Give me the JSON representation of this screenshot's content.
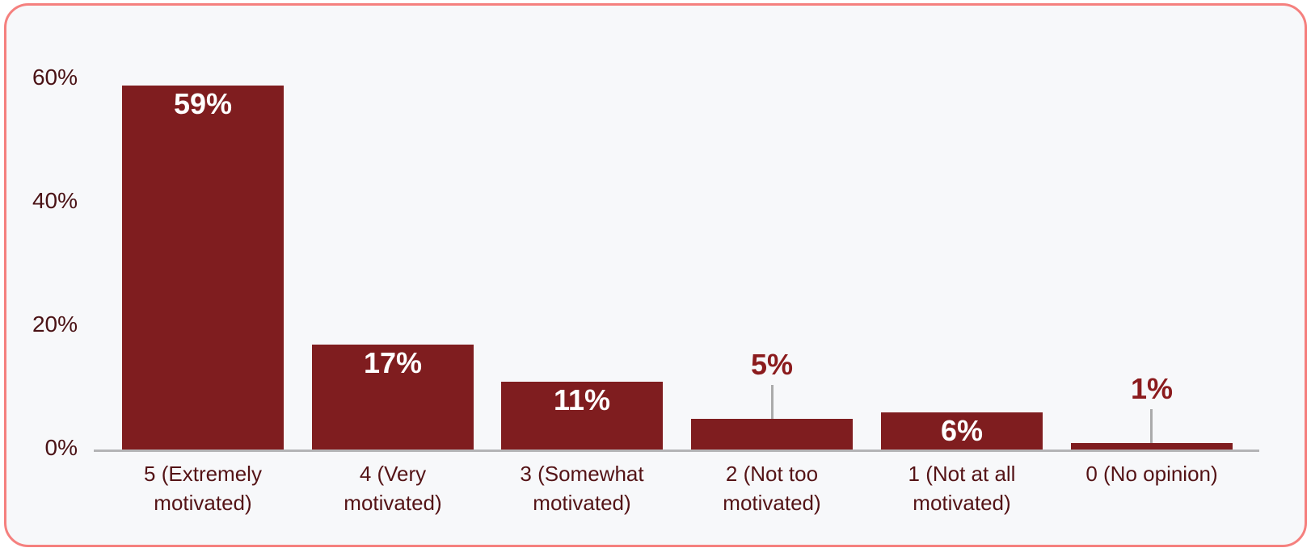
{
  "frame": {
    "border_color": "#f5807e",
    "background_color": "#f7f8fa"
  },
  "chart_data": {
    "type": "bar",
    "categories": [
      "5 (Extremely\nmotivated)",
      "4 (Very\nmotivated)",
      "3 (Somewhat\nmotivated)",
      "2 (Not too\nmotivated)",
      "1 (Not at all\nmotivated)",
      "0 (No opinion)"
    ],
    "values": [
      59,
      17,
      11,
      5,
      6,
      1
    ],
    "value_labels": [
      "59%",
      "17%",
      "11%",
      "5%",
      "6%",
      "1%"
    ],
    "value_label_placement": [
      "inside",
      "inside",
      "inside",
      "outside",
      "inside",
      "outside"
    ],
    "yticks": [
      {
        "value": 0,
        "label": "0%"
      },
      {
        "value": 20,
        "label": "20%"
      },
      {
        "value": 40,
        "label": "40%"
      },
      {
        "value": 60,
        "label": "60%"
      }
    ],
    "ylim": [
      0,
      65
    ],
    "grid": false,
    "legend_position": "none",
    "bar_color": "#7f1d1f",
    "inside_value_label_color": "#ffffff",
    "outside_value_label_color": "#8b1b1d",
    "tick_label_color": "#4a1215",
    "category_label_color": "#541316",
    "axis_line_color": "#b4b4b6",
    "leader_line_color": "#ababab"
  }
}
